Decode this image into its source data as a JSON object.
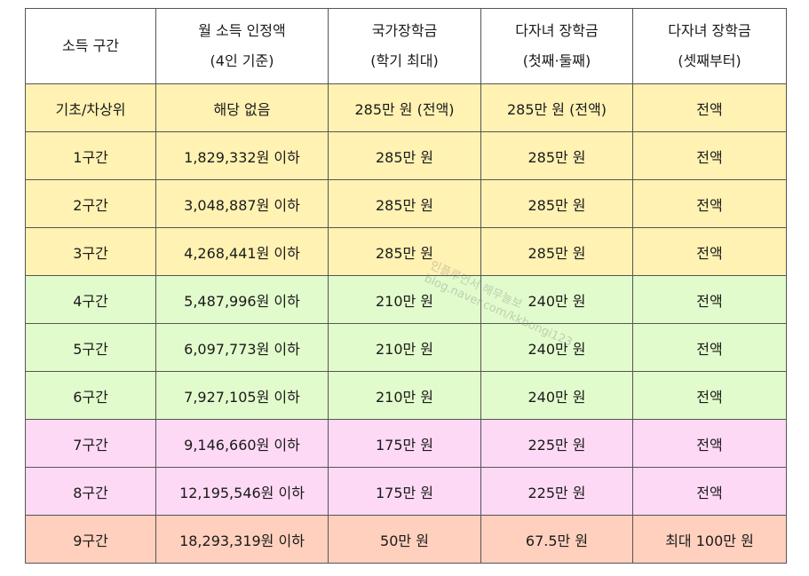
{
  "table": {
    "headers": [
      [
        "소득 구간"
      ],
      [
        "월 소득 인정액",
        "(4인 기준)"
      ],
      [
        "국가장학금",
        "(학기 최대)"
      ],
      [
        "다자녀 장학금",
        "(첫째·둘째)"
      ],
      [
        "다자녀 장학금",
        "(셋째부터)"
      ]
    ],
    "rows": [
      {
        "tier": "기초/차상위",
        "income": "해당 없음",
        "national": "285만 원 (전액)",
        "multi12": "285만 원 (전액)",
        "multi3": "전액"
      },
      {
        "tier": "1구간",
        "income": "1,829,332원 이하",
        "national": "285만 원",
        "multi12": "285만 원",
        "multi3": "전액"
      },
      {
        "tier": "2구간",
        "income": "3,048,887원 이하",
        "national": "285만 원",
        "multi12": "285만 원",
        "multi3": "전액"
      },
      {
        "tier": "3구간",
        "income": "4,268,441원 이하",
        "national": "285만 원",
        "multi12": "285만 원",
        "multi3": "전액"
      },
      {
        "tier": "4구간",
        "income": "5,487,996원 이하",
        "national": "210만 원",
        "multi12": "240만 원",
        "multi3": "전액"
      },
      {
        "tier": "5구간",
        "income": "6,097,773원 이하",
        "national": "210만 원",
        "multi12": "240만 원",
        "multi3": "전액"
      },
      {
        "tier": "6구간",
        "income": "7,927,105원 이하",
        "national": "210만 원",
        "multi12": "240만 원",
        "multi3": "전액"
      },
      {
        "tier": "7구간",
        "income": "9,146,660원 이하",
        "national": "175만 원",
        "multi12": "225만 원",
        "multi3": "전액"
      },
      {
        "tier": "8구간",
        "income": "12,195,546원 이하",
        "national": "175만 원",
        "multi12": "225만 원",
        "multi3": "전액"
      },
      {
        "tier": "9구간",
        "income": "18,293,319원 이하",
        "national": "50만 원",
        "multi12": "67.5만 원",
        "multi3": "최대 100만 원"
      }
    ],
    "row_colors": {
      "yellow": "#fff2b3",
      "green": "#e2fbcc",
      "pink": "#fdd9f5",
      "salmon": "#ffd0bd"
    }
  },
  "watermark": {
    "line1": "인플루언서 해무늘보",
    "line2": "blog.naver.com/kkbongi123"
  }
}
